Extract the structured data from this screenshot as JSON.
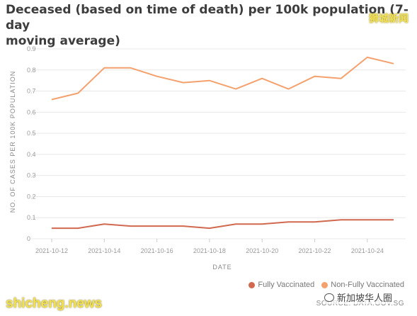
{
  "title": "Deceased (based on time of death) per 100k population (7-day\nmoving average)",
  "watermark_top": "狮城新闻",
  "watermark_left": "shicheng.news",
  "watermark_right": "新加坡华人圈",
  "source": "SOURCE: DATA.GOV.SG",
  "colors": {
    "fully": "#d0694f",
    "non_fully": "#f4a16e",
    "grid": "#e8e8e8",
    "axis_text": "#999999"
  },
  "chart_data": {
    "type": "line",
    "title": "Deceased (based on time of death) per 100k population (7-day moving average)",
    "xlabel": "DATE",
    "ylabel": "NO. OF CASES PER 100K POPULATION",
    "ylim": [
      0,
      0.9
    ],
    "y_ticks": [
      "0",
      "0.1",
      "0.2",
      "0.3",
      "0.4",
      "0.5",
      "0.6",
      "0.7",
      "0.8",
      "0.9"
    ],
    "x": [
      "2021-10-12",
      "2021-10-13",
      "2021-10-14",
      "2021-10-15",
      "2021-10-16",
      "2021-10-17",
      "2021-10-18",
      "2021-10-19",
      "2021-10-20",
      "2021-10-21",
      "2021-10-22",
      "2021-10-23",
      "2021-10-24",
      "2021-10-25"
    ],
    "x_tick_labels": [
      "2021-10-12",
      "2021-10-14",
      "2021-10-16",
      "2021-10-18",
      "2021-10-20",
      "2021-10-22",
      "2021-10-24"
    ],
    "grid": true,
    "legend_position": "bottom-right",
    "series": [
      {
        "name": "Fully Vaccinated",
        "color": "#d0694f",
        "values": [
          0.05,
          0.05,
          0.07,
          0.06,
          0.06,
          0.06,
          0.05,
          0.07,
          0.07,
          0.08,
          0.08,
          0.09,
          0.09,
          0.09
        ]
      },
      {
        "name": "Non-Fully Vaccinated",
        "color": "#f4a16e",
        "values": [
          0.66,
          0.69,
          0.81,
          0.81,
          0.77,
          0.74,
          0.75,
          0.71,
          0.76,
          0.71,
          0.77,
          0.76,
          0.86,
          0.83
        ]
      }
    ]
  }
}
